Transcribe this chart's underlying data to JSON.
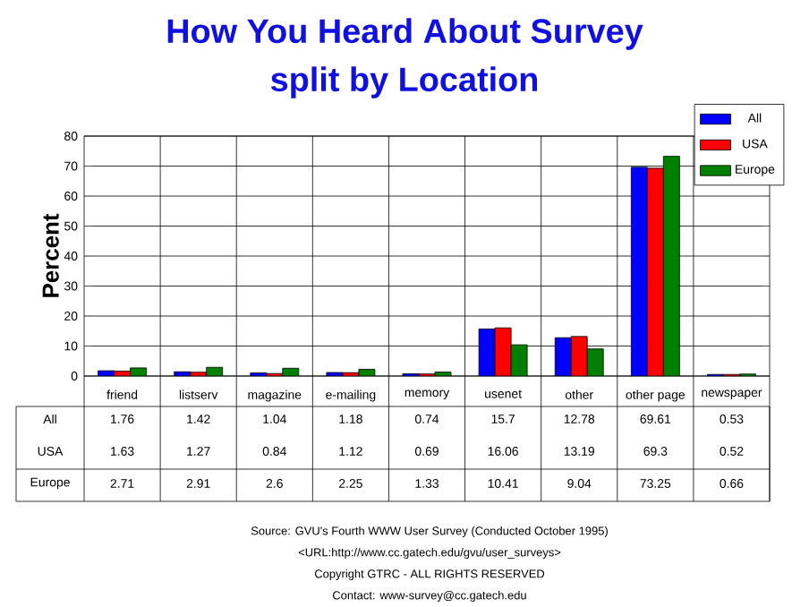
{
  "chart_data": {
    "type": "bar",
    "title": "How You Heard About Survey",
    "subtitle": "split by Location",
    "ylabel": "Percent",
    "categories": [
      "friend",
      "listserv",
      "magazine",
      "e-mailing",
      "memory",
      "usenet",
      "other",
      "other page",
      "newspaper"
    ],
    "series": [
      {
        "name": "All",
        "color": "#0000ff",
        "values": [
          1.76,
          1.42,
          1.04,
          1.18,
          0.74,
          15.7,
          12.78,
          69.61,
          0.53
        ]
      },
      {
        "name": "USA",
        "color": "#ff0000",
        "values": [
          1.63,
          1.27,
          0.84,
          1.12,
          0.69,
          16.06,
          13.19,
          69.3,
          0.52
        ]
      },
      {
        "name": "Europe",
        "color": "#008000",
        "values": [
          2.71,
          2.91,
          2.6,
          2.25,
          1.33,
          10.41,
          9.04,
          73.25,
          0.66
        ]
      }
    ],
    "ylim": [
      0,
      80
    ],
    "yticks": [
      0,
      10,
      20,
      30,
      40,
      50,
      60,
      70,
      80
    ],
    "grid": true,
    "legend": "top right",
    "data_labels": true,
    "annotations": [
      "Source: GVU's Fourth WWW User Survey (Conducted October 1995)",
      "<URL:http://www.cc.gatech.edu/gvu/user_surveys>",
      "Copyright GTRC -  ALL RIGHTS RESERVED",
      "Contact: www-survey@cc.gatech.edu"
    ]
  }
}
